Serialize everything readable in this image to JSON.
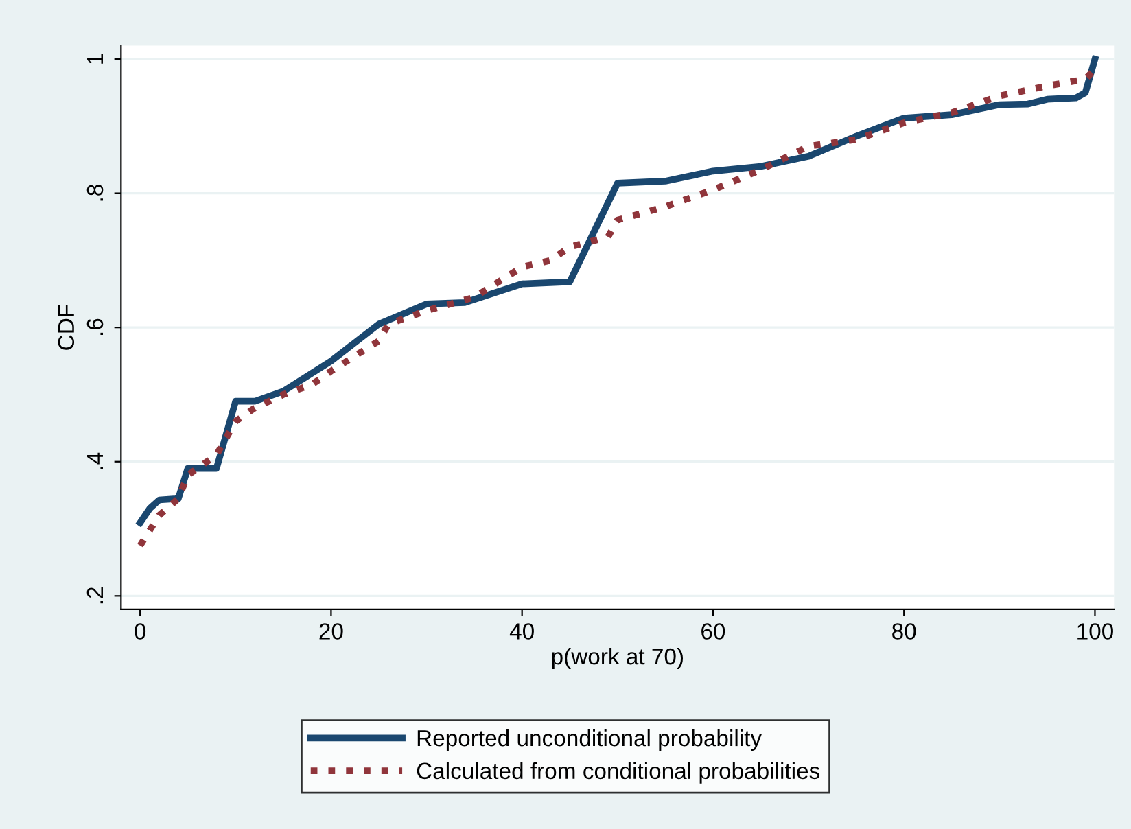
{
  "chart_data": {
    "type": "line",
    "xlabel": "p(work at 70)",
    "ylabel": "CDF",
    "xlim": [
      -2,
      102
    ],
    "ylim": [
      0.18,
      1.02
    ],
    "xticks": [
      0,
      20,
      40,
      60,
      80,
      100
    ],
    "yticks": [
      {
        "value": 0.2,
        "label": ".2"
      },
      {
        "value": 0.4,
        "label": ".4"
      },
      {
        "value": 0.6,
        "label": ".6"
      },
      {
        "value": 0.8,
        "label": ".8"
      },
      {
        "value": 1,
        "label": "1"
      }
    ],
    "grid": "y",
    "legend": "bottom",
    "series": [
      {
        "name": "Reported unconditional probability",
        "color": "#1a476f",
        "line_style": "solid",
        "x": [
          0,
          1,
          2,
          4,
          5,
          8,
          10,
          12,
          15,
          20,
          25,
          30,
          34,
          40,
          45,
          50,
          55,
          60,
          65,
          70,
          75,
          80,
          85,
          90,
          93,
          95,
          98,
          99,
          100
        ],
        "values": [
          0.309,
          0.33,
          0.343,
          0.345,
          0.39,
          0.39,
          0.49,
          0.49,
          0.505,
          0.55,
          0.605,
          0.635,
          0.637,
          0.665,
          0.668,
          0.815,
          0.818,
          0.833,
          0.84,
          0.855,
          0.885,
          0.912,
          0.917,
          0.932,
          0.933,
          0.94,
          0.942,
          0.95,
          1.0
        ]
      },
      {
        "name": "Calculated from conditional probabilities",
        "color": "#90353b",
        "line_style": "dotted",
        "x": [
          0,
          2,
          4,
          5,
          8,
          10,
          12,
          15,
          18,
          20,
          25,
          26,
          30,
          35,
          40,
          43,
          45,
          49,
          50,
          55,
          60,
          65,
          70,
          75,
          80,
          85,
          90,
          95,
          99,
          100
        ],
        "values": [
          0.275,
          0.32,
          0.345,
          0.38,
          0.41,
          0.46,
          0.48,
          0.5,
          0.515,
          0.535,
          0.58,
          0.605,
          0.625,
          0.645,
          0.69,
          0.7,
          0.72,
          0.735,
          0.76,
          0.78,
          0.805,
          0.835,
          0.87,
          0.88,
          0.905,
          0.92,
          0.945,
          0.96,
          0.97,
          0.985
        ]
      }
    ]
  }
}
